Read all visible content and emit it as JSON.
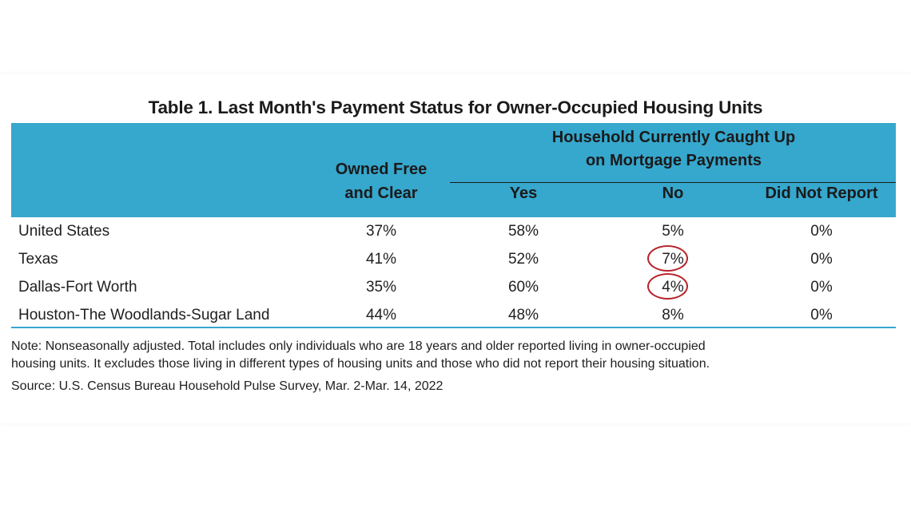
{
  "title": "Table 1. Last Month's Payment Status for Owner-Occupied Housing Units",
  "header": {
    "owned_line1": "Owned Free",
    "owned_line2": "and Clear",
    "group_line1": "Household Currently Caught Up",
    "group_line2": "on Mortgage Payments",
    "yes": "Yes",
    "no": "No",
    "did_not_report": "Did Not Report"
  },
  "rows": [
    {
      "label": "United States",
      "owned": "37%",
      "yes": "58%",
      "no": "5%",
      "did_not_report": "0%",
      "circled": false
    },
    {
      "label": "Texas",
      "owned": "41%",
      "yes": "52%",
      "no": "7%",
      "did_not_report": "0%",
      "circled": true
    },
    {
      "label": "Dallas-Fort Worth",
      "owned": "35%",
      "yes": "60%",
      "no": "4%",
      "did_not_report": "0%",
      "circled": true
    },
    {
      "label": "Houston-The Woodlands-Sugar Land",
      "owned": "44%",
      "yes": "48%",
      "no": "8%",
      "did_not_report": "0%",
      "circled": false
    }
  ],
  "note_line1": "Note: Nonseasonally adjusted. Total includes only individuals who are 18 years and older reported living in owner-occupied",
  "note_line2": "housing units. It excludes those living in different types of housing units and those who did not report their housing situation.",
  "source": "Source: U.S. Census Bureau Household Pulse Survey, Mar. 2-Mar. 14, 2022",
  "colors": {
    "header_bg": "#36a7cd",
    "highlight_circle": "#b8232a"
  }
}
